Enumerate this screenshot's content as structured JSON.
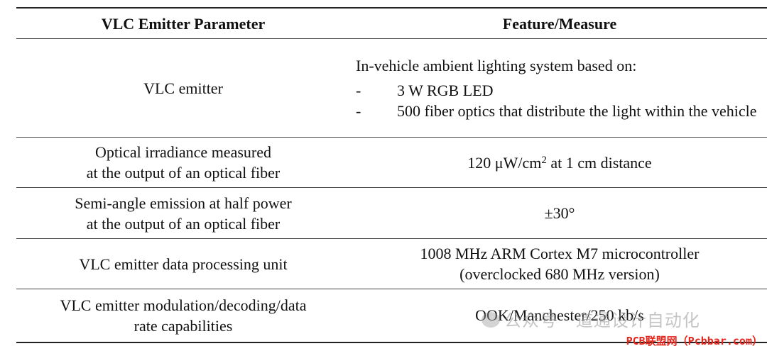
{
  "table": {
    "headers": [
      "VLC Emitter Parameter",
      "Feature/Measure"
    ],
    "rows": [
      {
        "parameter": [
          "VLC emitter"
        ],
        "intro": "In-vehicle ambient lighting system based on:",
        "bullets": [
          {
            "dash": "-",
            "text": "3 W RGB LED"
          },
          {
            "dash": "-",
            "text": "500 fiber optics that distribute the light within the vehicle"
          }
        ]
      },
      {
        "parameter": [
          "Optical irradiance measured",
          "at the output of an optical fiber"
        ],
        "value_pre": "120 μW/cm",
        "value_sup": "2",
        "value_post": " at 1 cm distance"
      },
      {
        "parameter": [
          "Semi-angle emission at half power",
          "at the output of an optical fiber"
        ],
        "value": [
          "±30°"
        ]
      },
      {
        "parameter": [
          "VLC emitter data processing unit"
        ],
        "value": [
          "1008 MHz ARM Cortex M7 microcontroller",
          "(overclocked 680 MHz version)"
        ]
      },
      {
        "parameter": [
          "VLC emitter modulation/decoding/data",
          "rate capabilities"
        ],
        "value": [
          "OOK/Manchester/250 kb/s"
        ]
      }
    ]
  },
  "watermark": {
    "text": "公众号 · 道通设计自动化",
    "logo_icon": "wechat-logo-icon"
  },
  "corner_label": "PCB联盟网（Pcbbar.com）"
}
